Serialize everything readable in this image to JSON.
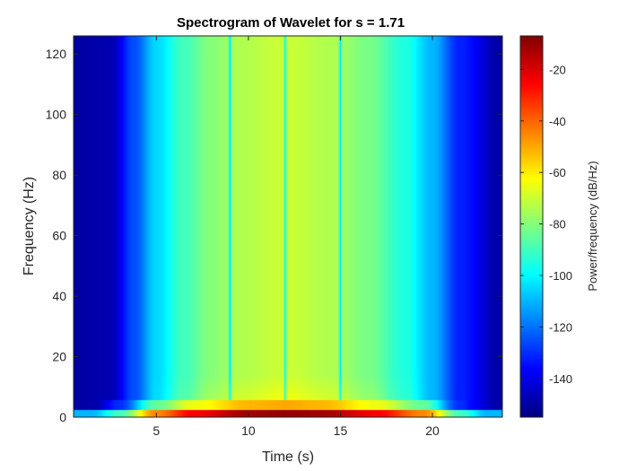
{
  "chart_data": {
    "type": "heatmap",
    "title": "Spectrogram of Wavelet for s = 1.71",
    "xlabel": "Time (s)",
    "ylabel": "Frequency (Hz)",
    "xlim": [
      0.5,
      23.8
    ],
    "ylim": [
      0,
      126
    ],
    "xticks": [
      5,
      10,
      15,
      20
    ],
    "yticks": [
      0,
      20,
      40,
      60,
      80,
      100,
      120
    ],
    "colormap": "jet",
    "colorbar": {
      "label": "Power/frequency (dB/Hz)",
      "range": [
        -155,
        -7
      ],
      "ticks": [
        -140,
        -120,
        -100,
        -80,
        -60,
        -40,
        -20
      ]
    },
    "time_profile_db": [
      {
        "t": 0.5,
        "db": -150
      },
      {
        "t": 2.5,
        "db": -148
      },
      {
        "t": 3.8,
        "db": -125
      },
      {
        "t": 5.0,
        "db": -105
      },
      {
        "t": 6.5,
        "db": -90
      },
      {
        "t": 8.0,
        "db": -80
      },
      {
        "t": 9.5,
        "db": -74
      },
      {
        "t": 12.0,
        "db": -70
      },
      {
        "t": 14.5,
        "db": -74
      },
      {
        "t": 16.5,
        "db": -82
      },
      {
        "t": 18.5,
        "db": -95
      },
      {
        "t": 20.0,
        "db": -110
      },
      {
        "t": 21.5,
        "db": -132
      },
      {
        "t": 23.8,
        "db": -150
      }
    ],
    "low_freq_band": {
      "freq_range_hz": [
        0,
        2.5
      ],
      "time_profile_db": [
        {
          "t": 1.5,
          "db": -110
        },
        {
          "t": 3.0,
          "db": -90
        },
        {
          "t": 5.0,
          "db": -45
        },
        {
          "t": 7.0,
          "db": -25
        },
        {
          "t": 10.0,
          "db": -12
        },
        {
          "t": 12.0,
          "db": -10
        },
        {
          "t": 14.0,
          "db": -12
        },
        {
          "t": 17.0,
          "db": -25
        },
        {
          "t": 19.5,
          "db": -45
        },
        {
          "t": 21.5,
          "db": -90
        },
        {
          "t": 23.0,
          "db": -110
        }
      ]
    },
    "notch_lines_s": [
      9.0,
      12.0,
      15.0
    ]
  }
}
